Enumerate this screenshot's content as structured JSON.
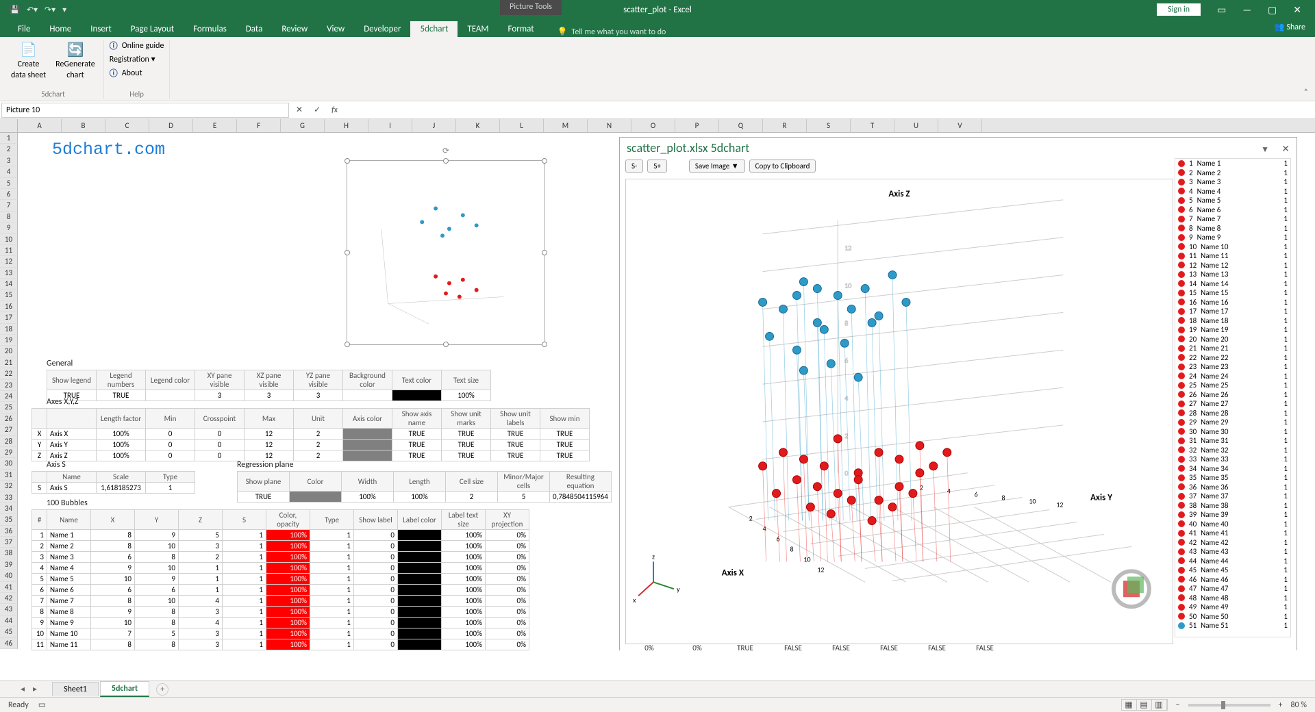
{
  "titlebar": {
    "picture_tools": "Picture Tools",
    "doc": "scatter_plot - Excel",
    "sign_in": "Sign in"
  },
  "tabs": {
    "file": "File",
    "home": "Home",
    "insert": "Insert",
    "page_layout": "Page Layout",
    "formulas": "Formulas",
    "data": "Data",
    "review": "Review",
    "view": "View",
    "developer": "Developer",
    "fdchart": "5dchart",
    "team": "TEAM",
    "format": "Format"
  },
  "tellme": "Tell me what you want to do",
  "share": "Share",
  "ribbon": {
    "create_datasheet_l1": "Create",
    "create_datasheet_l2": "data sheet",
    "regenerate_l1": "ReGenerate",
    "regenerate_l2": "chart",
    "online_guide": "Online guide",
    "registration": "Registration ▾",
    "about": "About",
    "group1": "5dchart",
    "group2": "Help"
  },
  "name_box": "Picture 10",
  "columns": [
    "A",
    "B",
    "C",
    "D",
    "E",
    "F",
    "G",
    "H",
    "I",
    "J",
    "K",
    "L",
    "M",
    "N",
    "O",
    "P",
    "Q",
    "R",
    "S",
    "T",
    "U",
    "V"
  ],
  "brand": "5dchart.com",
  "general": {
    "title": "General",
    "headers": [
      "Show legend",
      "Legend numbers",
      "Legend color",
      "XY pane visible",
      "XZ pane visible",
      "YZ pane visible",
      "Background color",
      "Text color",
      "Text size"
    ],
    "row": [
      "TRUE",
      "TRUE",
      "",
      "3",
      "3",
      "3",
      "",
      "",
      "100%"
    ]
  },
  "axes": {
    "title": "Axes X,Y,Z",
    "headers": [
      "",
      "Length factor",
      "Min",
      "Crosspoint",
      "Max",
      "Unit",
      "Axis color",
      "Show axis name",
      "Show unit marks",
      "Show unit labels",
      "Show min"
    ],
    "rows": [
      [
        "X",
        "Axis X",
        "100%",
        "0",
        "0",
        "12",
        "2",
        "",
        "TRUE",
        "TRUE",
        "TRUE",
        "TRUE"
      ],
      [
        "Y",
        "Axis Y",
        "100%",
        "0",
        "0",
        "12",
        "2",
        "",
        "TRUE",
        "TRUE",
        "TRUE",
        "TRUE"
      ],
      [
        "Z",
        "Axis Z",
        "100%",
        "0",
        "0",
        "12",
        "2",
        "",
        "TRUE",
        "TRUE",
        "TRUE",
        "TRUE"
      ]
    ]
  },
  "axis_s": {
    "title": "Axis S",
    "headers": [
      "",
      "Name",
      "Scale",
      "Type"
    ],
    "row": [
      "S",
      "Axis S",
      "1,618185273",
      "1"
    ]
  },
  "regression": {
    "title": "Regression plane",
    "headers": [
      "Show plane",
      "Color",
      "Width",
      "Length",
      "Cell size",
      "Minor/Major cells",
      "Resulting equation"
    ],
    "row": [
      "TRUE",
      "",
      "100%",
      "100%",
      "2",
      "5",
      "0,7848504115964"
    ]
  },
  "bubbles": {
    "title": "100  Bubbles",
    "headers": [
      "#",
      "Name",
      "X",
      "Y",
      "Z",
      "S",
      "Color, opacity",
      "Type",
      "Show label",
      "Label color",
      "Label text size",
      "XY projection"
    ],
    "rows": [
      [
        "1",
        "Name 1",
        "8",
        "9",
        "5",
        "1",
        "100%",
        "1",
        "0",
        "",
        "100%",
        "0%"
      ],
      [
        "2",
        "Name 2",
        "8",
        "10",
        "3",
        "1",
        "100%",
        "1",
        "0",
        "",
        "100%",
        "0%"
      ],
      [
        "3",
        "Name 3",
        "6",
        "8",
        "2",
        "1",
        "100%",
        "1",
        "0",
        "",
        "100%",
        "0%"
      ],
      [
        "4",
        "Name 4",
        "9",
        "10",
        "1",
        "1",
        "100%",
        "1",
        "0",
        "",
        "100%",
        "0%"
      ],
      [
        "5",
        "Name 5",
        "10",
        "9",
        "1",
        "1",
        "100%",
        "1",
        "0",
        "",
        "100%",
        "0%"
      ],
      [
        "6",
        "Name 6",
        "6",
        "6",
        "1",
        "1",
        "100%",
        "1",
        "0",
        "",
        "100%",
        "0%"
      ],
      [
        "7",
        "Name 7",
        "8",
        "10",
        "4",
        "1",
        "100%",
        "1",
        "0",
        "",
        "100%",
        "0%"
      ],
      [
        "8",
        "Name 8",
        "9",
        "8",
        "3",
        "1",
        "100%",
        "1",
        "0",
        "",
        "100%",
        "0%"
      ],
      [
        "9",
        "Name 9",
        "10",
        "8",
        "4",
        "1",
        "100%",
        "1",
        "0",
        "",
        "100%",
        "0%"
      ],
      [
        "10",
        "Name 10",
        "7",
        "5",
        "3",
        "1",
        "100%",
        "1",
        "0",
        "",
        "100%",
        "0%"
      ],
      [
        "11",
        "Name 11",
        "8",
        "8",
        "3",
        "1",
        "100%",
        "1",
        "0",
        "",
        "100%",
        "0%"
      ]
    ]
  },
  "chart_pane": {
    "title": "scatter_plot.xlsx 5dchart",
    "s_minus": "S-",
    "s_plus": "S+",
    "save_img": "Save Image  ▼",
    "copy_clip": "Copy to Clipboard",
    "axis_z": "Axis Z",
    "axis_y": "Axis Y",
    "axis_x": "Axis X",
    "flags": [
      "0%",
      "0%",
      "TRUE",
      "FALSE",
      "FALSE",
      "FALSE",
      "FALSE",
      "FALSE"
    ],
    "legend": [
      {
        "n": 1,
        "name": "Name 1",
        "c": "#e31a1c",
        "v": 1
      },
      {
        "n": 2,
        "name": "Name 2",
        "c": "#e31a1c",
        "v": 1
      },
      {
        "n": 3,
        "name": "Name 3",
        "c": "#e31a1c",
        "v": 1
      },
      {
        "n": 4,
        "name": "Name 4",
        "c": "#e31a1c",
        "v": 1
      },
      {
        "n": 5,
        "name": "Name 5",
        "c": "#e31a1c",
        "v": 1
      },
      {
        "n": 6,
        "name": "Name 6",
        "c": "#e31a1c",
        "v": 1
      },
      {
        "n": 7,
        "name": "Name 7",
        "c": "#e31a1c",
        "v": 1
      },
      {
        "n": 8,
        "name": "Name 8",
        "c": "#e31a1c",
        "v": 1
      },
      {
        "n": 9,
        "name": "Name 9",
        "c": "#e31a1c",
        "v": 1
      },
      {
        "n": 10,
        "name": "Name 10",
        "c": "#e31a1c",
        "v": 1
      },
      {
        "n": 11,
        "name": "Name 11",
        "c": "#e31a1c",
        "v": 1
      },
      {
        "n": 12,
        "name": "Name 12",
        "c": "#e31a1c",
        "v": 1
      },
      {
        "n": 13,
        "name": "Name 13",
        "c": "#e31a1c",
        "v": 1
      },
      {
        "n": 14,
        "name": "Name 14",
        "c": "#e31a1c",
        "v": 1
      },
      {
        "n": 15,
        "name": "Name 15",
        "c": "#e31a1c",
        "v": 1
      },
      {
        "n": 16,
        "name": "Name 16",
        "c": "#e31a1c",
        "v": 1
      },
      {
        "n": 17,
        "name": "Name 17",
        "c": "#e31a1c",
        "v": 1
      },
      {
        "n": 18,
        "name": "Name 18",
        "c": "#e31a1c",
        "v": 1
      },
      {
        "n": 19,
        "name": "Name 19",
        "c": "#e31a1c",
        "v": 1
      },
      {
        "n": 20,
        "name": "Name 20",
        "c": "#e31a1c",
        "v": 1
      },
      {
        "n": 21,
        "name": "Name 21",
        "c": "#e31a1c",
        "v": 1
      },
      {
        "n": 22,
        "name": "Name 22",
        "c": "#e31a1c",
        "v": 1
      },
      {
        "n": 23,
        "name": "Name 23",
        "c": "#e31a1c",
        "v": 1
      },
      {
        "n": 24,
        "name": "Name 24",
        "c": "#e31a1c",
        "v": 1
      },
      {
        "n": 25,
        "name": "Name 25",
        "c": "#e31a1c",
        "v": 1
      },
      {
        "n": 26,
        "name": "Name 26",
        "c": "#e31a1c",
        "v": 1
      },
      {
        "n": 27,
        "name": "Name 27",
        "c": "#e31a1c",
        "v": 1
      },
      {
        "n": 28,
        "name": "Name 28",
        "c": "#e31a1c",
        "v": 1
      },
      {
        "n": 29,
        "name": "Name 29",
        "c": "#e31a1c",
        "v": 1
      },
      {
        "n": 30,
        "name": "Name 30",
        "c": "#e31a1c",
        "v": 1
      },
      {
        "n": 31,
        "name": "Name 31",
        "c": "#e31a1c",
        "v": 1
      },
      {
        "n": 32,
        "name": "Name 32",
        "c": "#e31a1c",
        "v": 1
      },
      {
        "n": 33,
        "name": "Name 33",
        "c": "#e31a1c",
        "v": 1
      },
      {
        "n": 34,
        "name": "Name 34",
        "c": "#e31a1c",
        "v": 1
      },
      {
        "n": 35,
        "name": "Name 35",
        "c": "#e31a1c",
        "v": 1
      },
      {
        "n": 36,
        "name": "Name 36",
        "c": "#e31a1c",
        "v": 1
      },
      {
        "n": 37,
        "name": "Name 37",
        "c": "#e31a1c",
        "v": 1
      },
      {
        "n": 38,
        "name": "Name 38",
        "c": "#e31a1c",
        "v": 1
      },
      {
        "n": 39,
        "name": "Name 39",
        "c": "#e31a1c",
        "v": 1
      },
      {
        "n": 40,
        "name": "Name 40",
        "c": "#e31a1c",
        "v": 1
      },
      {
        "n": 41,
        "name": "Name 41",
        "c": "#e31a1c",
        "v": 1
      },
      {
        "n": 42,
        "name": "Name 42",
        "c": "#e31a1c",
        "v": 1
      },
      {
        "n": 43,
        "name": "Name 43",
        "c": "#e31a1c",
        "v": 1
      },
      {
        "n": 44,
        "name": "Name 44",
        "c": "#e31a1c",
        "v": 1
      },
      {
        "n": 45,
        "name": "Name 45",
        "c": "#e31a1c",
        "v": 1
      },
      {
        "n": 46,
        "name": "Name 46",
        "c": "#e31a1c",
        "v": 1
      },
      {
        "n": 47,
        "name": "Name 47",
        "c": "#e31a1c",
        "v": 1
      },
      {
        "n": 48,
        "name": "Name 48",
        "c": "#e31a1c",
        "v": 1
      },
      {
        "n": 49,
        "name": "Name 49",
        "c": "#e31a1c",
        "v": 1
      },
      {
        "n": 50,
        "name": "Name 50",
        "c": "#e31a1c",
        "v": 1
      },
      {
        "n": 51,
        "name": "Name 51",
        "c": "#2e9ac8",
        "v": 1
      }
    ],
    "scatter": {
      "background": "#ffffff",
      "grid": "#cccccc",
      "blue": "#2e9ac8",
      "red": "#e31a1c",
      "z_ticks": [
        0,
        2,
        4,
        6,
        8,
        10,
        12
      ],
      "blue_points": [
        [
          200,
          180
        ],
        [
          230,
          190
        ],
        [
          260,
          150
        ],
        [
          280,
          210
        ],
        [
          310,
          170
        ],
        [
          330,
          190
        ],
        [
          350,
          160
        ],
        [
          370,
          200
        ],
        [
          390,
          140
        ],
        [
          410,
          180
        ],
        [
          210,
          230
        ],
        [
          250,
          250
        ],
        [
          290,
          220
        ],
        [
          320,
          240
        ],
        [
          360,
          210
        ],
        [
          260,
          280
        ],
        [
          300,
          270
        ],
        [
          340,
          290
        ],
        [
          250,
          170
        ],
        [
          280,
          160
        ]
      ],
      "red_points": [
        [
          230,
          400
        ],
        [
          260,
          410
        ],
        [
          290,
          420
        ],
        [
          310,
          380
        ],
        [
          340,
          430
        ],
        [
          370,
          400
        ],
        [
          400,
          410
        ],
        [
          430,
          390
        ],
        [
          250,
          440
        ],
        [
          280,
          450
        ],
        [
          310,
          460
        ],
        [
          340,
          440
        ],
        [
          370,
          470
        ],
        [
          400,
          450
        ],
        [
          430,
          430
        ],
        [
          270,
          480
        ],
        [
          300,
          490
        ],
        [
          330,
          470
        ],
        [
          360,
          500
        ],
        [
          390,
          480
        ],
        [
          420,
          460
        ],
        [
          450,
          420
        ],
        [
          470,
          400
        ],
        [
          200,
          420
        ],
        [
          220,
          460
        ]
      ]
    }
  },
  "sheet_tabs": {
    "s1": "Sheet1",
    "s2": "5dchart"
  },
  "status": {
    "ready": "Ready",
    "zoom": "80 %"
  }
}
